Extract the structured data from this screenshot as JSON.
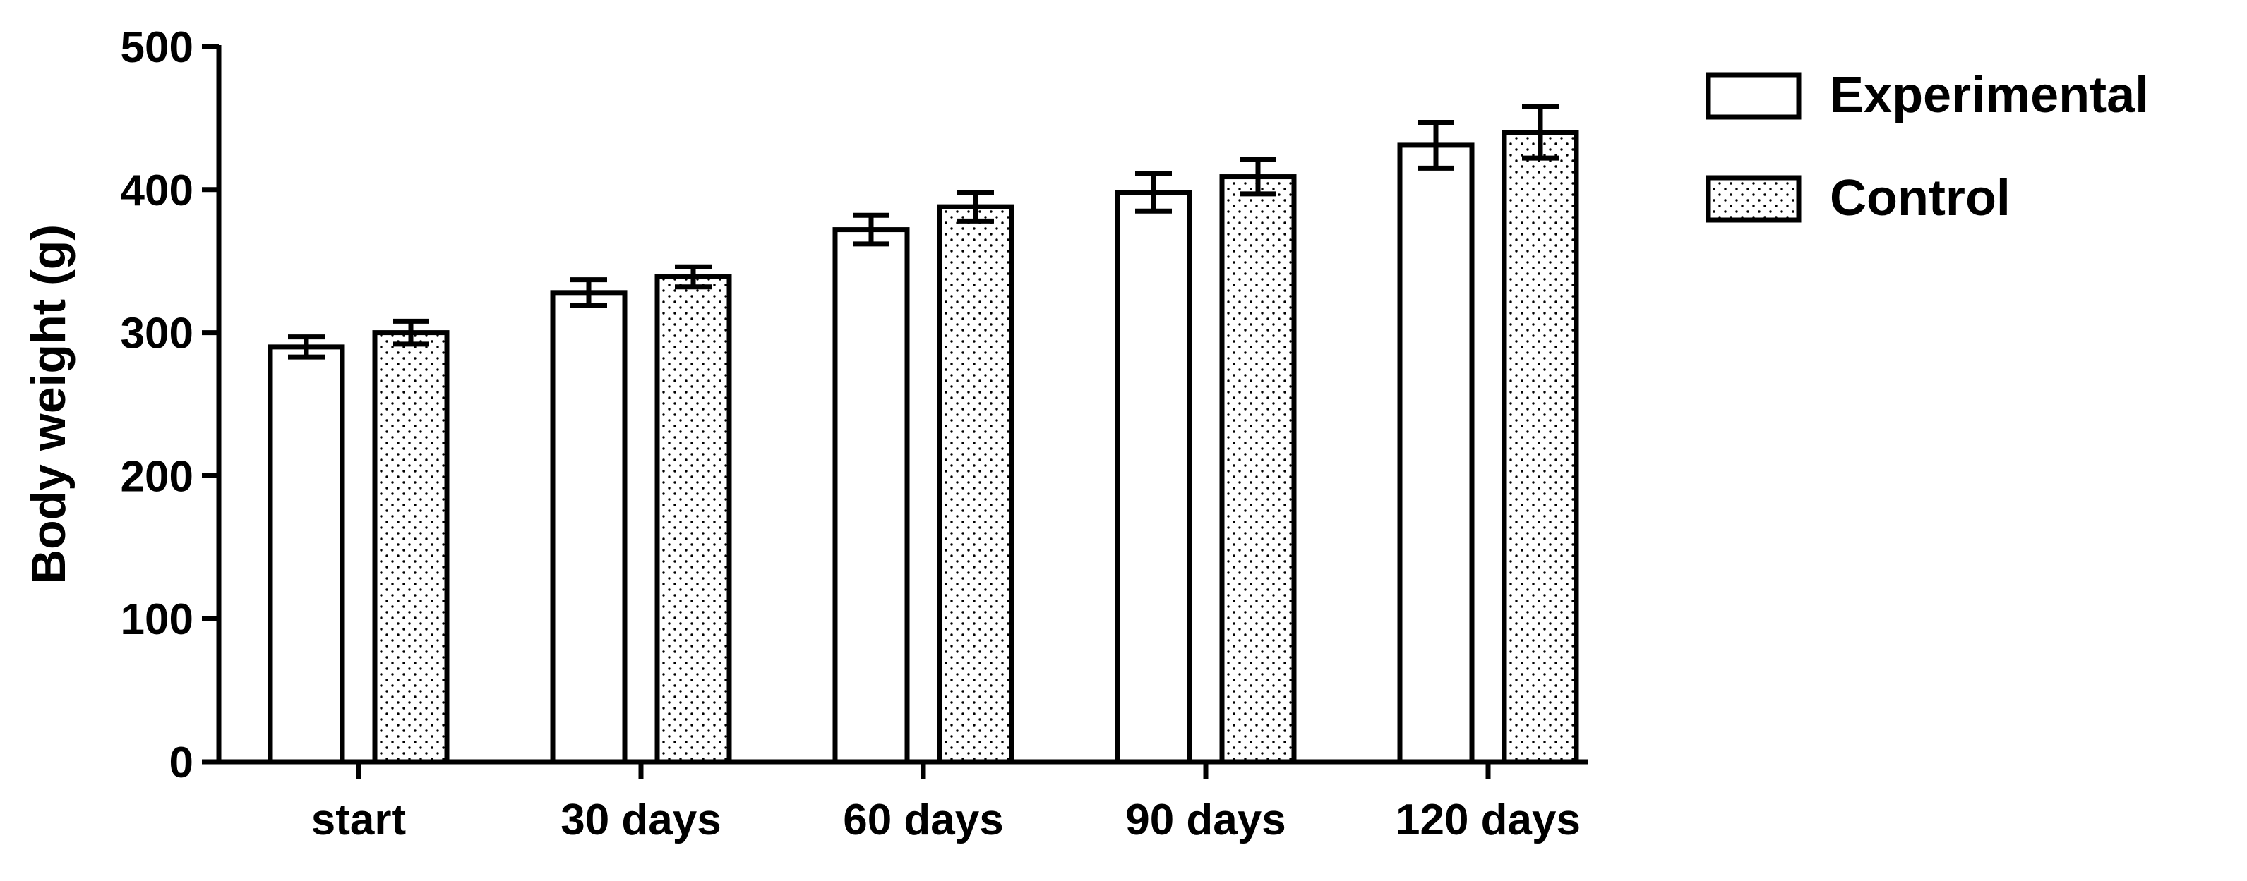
{
  "chart_data": {
    "type": "bar",
    "title": "",
    "xlabel": "",
    "ylabel": "Body weight (g)",
    "categories": [
      "start",
      "30 days",
      "60 days",
      "90 days",
      "120 days"
    ],
    "series": [
      {
        "name": "Experimental",
        "fill": "#ffffff",
        "pattern": "none",
        "values": [
          290,
          328,
          372,
          398,
          431
        ],
        "errors": [
          7,
          9,
          10,
          13,
          16
        ]
      },
      {
        "name": "Control",
        "fill": "#ffffff",
        "pattern": "dots",
        "values": [
          300,
          339,
          388,
          409,
          440
        ],
        "errors": [
          8,
          7,
          10,
          12,
          18
        ]
      }
    ],
    "ylim": [
      0,
      500
    ],
    "yticks": [
      "0",
      "100",
      "200",
      "300",
      "400",
      "500"
    ],
    "grid": false,
    "legend_position": "top-right",
    "colors": {
      "axis": "#000000",
      "bar_outline": "#000000",
      "dot_pattern": "#000000",
      "background": "#ffffff"
    }
  }
}
